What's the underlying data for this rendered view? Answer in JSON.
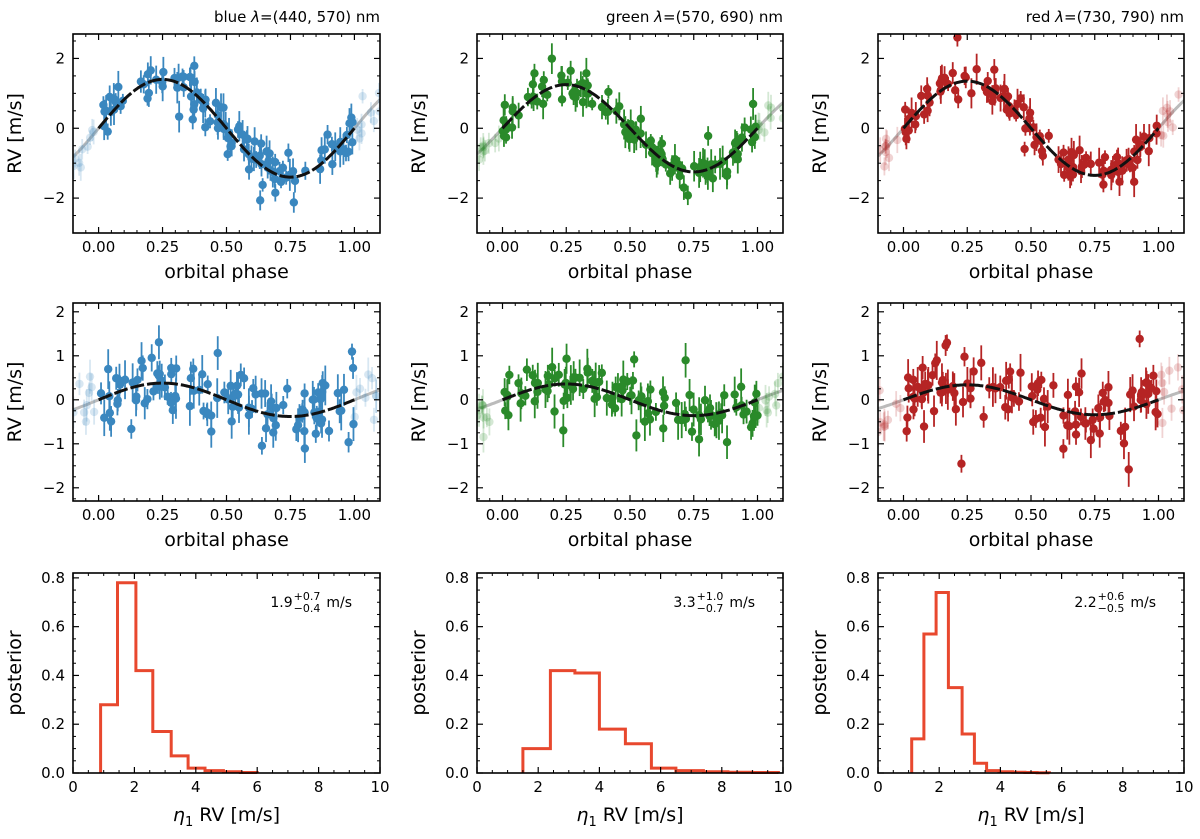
{
  "figure": {
    "colors": {
      "blue": "#3a87bf",
      "green": "#2a8a2a",
      "red": "#b52424",
      "hist": "#e8482e",
      "model": "#111111",
      "ext": "#aaaaaa"
    },
    "phase_ticks": [
      "0.00",
      "0.25",
      "0.50",
      "0.75",
      "1.00"
    ],
    "rv_ticks_top": [
      "2",
      "0",
      "−2"
    ],
    "rv_ticks_mid": [
      "2",
      "1",
      "0",
      "−1",
      "−2"
    ],
    "post_xticks": [
      "0",
      "2",
      "4",
      "6",
      "8",
      "10"
    ],
    "post_yticks": [
      "0.0",
      "0.2",
      "0.4",
      "0.6",
      "0.8"
    ],
    "labels": {
      "phase": "orbital phase",
      "rv": "RV [m/s]",
      "posterior": "posterior",
      "eta": "η",
      "eta_sub": "1",
      "eta_rest": " RV [m/s]",
      "unit": "m/s"
    }
  },
  "chart_data": [
    {
      "type": "scatter",
      "band": "blue",
      "title_prefix": "blue ",
      "title_lambda": "λ",
      "title_rest": "=(440, 570) nm",
      "xlabel": "orbital phase",
      "ylabel": "RV [m/s]",
      "xlim": [
        -0.1,
        1.1
      ],
      "ylim": [
        -3,
        2.7
      ],
      "model": {
        "K": 1.4
      },
      "seed": 11,
      "noise": 0.35
    },
    {
      "type": "scatter",
      "band": "green",
      "title_prefix": "green ",
      "title_lambda": "λ",
      "title_rest": "=(570, 690) nm",
      "xlabel": "orbital phase",
      "ylabel": "RV [m/s]",
      "xlim": [
        -0.1,
        1.1
      ],
      "ylim": [
        -3,
        2.7
      ],
      "model": {
        "K": 1.25
      },
      "seed": 23,
      "noise": 0.25
    },
    {
      "type": "scatter",
      "band": "red",
      "title_prefix": "red ",
      "title_lambda": "λ",
      "title_rest": "=(730, 790) nm",
      "xlabel": "orbital phase",
      "ylabel": "RV [m/s]",
      "xlim": [
        -0.1,
        1.1
      ],
      "ylim": [
        -3,
        2.7
      ],
      "model": {
        "K": 1.35
      },
      "seed": 37,
      "noise": 0.25
    },
    {
      "type": "scatter",
      "band": "blue",
      "xlabel": "orbital phase",
      "ylabel": "RV [m/s]",
      "xlim": [
        -0.1,
        1.1
      ],
      "ylim": [
        -2.3,
        2.2
      ],
      "model": {
        "K": 0.38
      },
      "seed": 41,
      "noise": 0.4
    },
    {
      "type": "scatter",
      "band": "green",
      "xlabel": "orbital phase",
      "ylabel": "RV [m/s]",
      "xlim": [
        -0.1,
        1.1
      ],
      "ylim": [
        -2.3,
        2.2
      ],
      "model": {
        "K": 0.36
      },
      "seed": 53,
      "noise": 0.3
    },
    {
      "type": "scatter",
      "band": "red",
      "xlabel": "orbital phase",
      "ylabel": "RV [m/s]",
      "xlim": [
        -0.1,
        1.1
      ],
      "ylim": [
        -2.3,
        2.2
      ],
      "model": {
        "K": 0.34
      },
      "seed": 67,
      "noise": 0.35
    },
    {
      "type": "bar",
      "band": "blue",
      "xlabel": "η1 RV [m/s]",
      "ylabel": "posterior",
      "xlim": [
        0,
        10
      ],
      "ylim": [
        0,
        0.82
      ],
      "bin_edges": [
        0.9,
        1.45,
        2.05,
        2.6,
        3.2,
        3.75,
        4.3,
        4.9,
        5.45,
        6.0
      ],
      "values": [
        0.28,
        0.78,
        0.42,
        0.17,
        0.07,
        0.02,
        0.01,
        0.005,
        0.002
      ],
      "annot": {
        "value": "1.9",
        "plus": "+0.7",
        "minus": "−0.4",
        "unit": "m/s"
      }
    },
    {
      "type": "bar",
      "band": "green",
      "xlabel": "η1 RV [m/s]",
      "ylabel": "posterior",
      "xlim": [
        0,
        10
      ],
      "ylim": [
        0,
        0.82
      ],
      "bin_edges": [
        1.5,
        2.4,
        3.2,
        4.0,
        4.85,
        5.7,
        6.5,
        7.4,
        8.2,
        9.0,
        9.85
      ],
      "values": [
        0.1,
        0.42,
        0.41,
        0.18,
        0.12,
        0.02,
        0.01,
        0.005,
        0.003,
        0.002
      ],
      "annot": {
        "value": "3.3",
        "plus": "+1.0",
        "minus": "−0.7",
        "unit": "m/s"
      }
    },
    {
      "type": "bar",
      "band": "red",
      "xlabel": "η1 RV [m/s]",
      "ylabel": "posterior",
      "xlim": [
        0,
        10
      ],
      "ylim": [
        0,
        0.82
      ],
      "bin_edges": [
        1.1,
        1.5,
        1.9,
        2.3,
        2.75,
        3.15,
        3.55,
        3.95,
        4.4,
        4.8,
        5.2,
        5.6
      ],
      "values": [
        0.14,
        0.57,
        0.74,
        0.35,
        0.16,
        0.04,
        0.01,
        0.005,
        0.003,
        0.002,
        0.001
      ],
      "annot": {
        "value": "2.2",
        "plus": "+0.6",
        "minus": "−0.5",
        "unit": "m/s"
      }
    }
  ]
}
